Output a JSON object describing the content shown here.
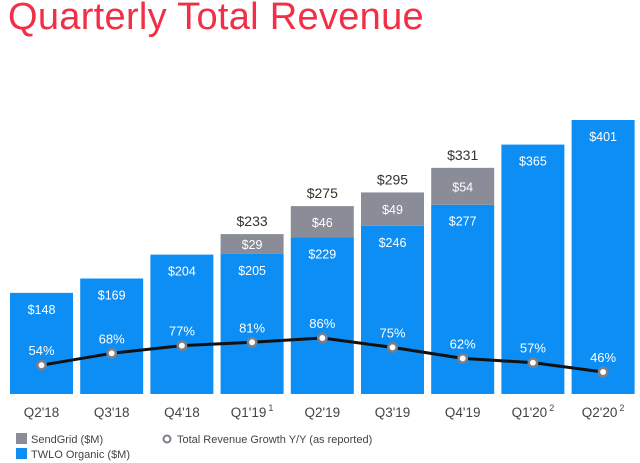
{
  "chart_data": {
    "type": "bar",
    "title": "Quarterly Total Revenue",
    "xlabel": "",
    "ylabel": "",
    "ylim": [
      0,
      401
    ],
    "categories": [
      "Q2'18",
      "Q3'18",
      "Q4'18",
      "Q1'19",
      "Q2'19",
      "Q3'19",
      "Q4'19",
      "Q1'20",
      "Q2'20"
    ],
    "category_superscripts": [
      "",
      "",
      "",
      "1",
      "",
      "",
      "",
      "2",
      "2"
    ],
    "stacked": true,
    "series": [
      {
        "name": "TWLO Organic ($M)",
        "color": "#0d8ef5",
        "values": [
          148,
          169,
          204,
          205,
          229,
          246,
          277,
          365,
          401
        ],
        "labels": [
          "$148",
          "$169",
          "$204",
          "$205",
          "$229",
          "$246",
          "$277",
          "$365",
          "$401"
        ]
      },
      {
        "name": "SendGrid ($M)",
        "color": "#8a8d97",
        "values": [
          null,
          null,
          null,
          29,
          46,
          49,
          54,
          null,
          null
        ],
        "labels": [
          "",
          "",
          "",
          "$29",
          "$46",
          "$49",
          "$54",
          "",
          ""
        ]
      }
    ],
    "totals": [
      "",
      "",
      "",
      "$233",
      "$275",
      "$295",
      "$331",
      "",
      ""
    ],
    "line_series": {
      "name": "Total Revenue Growth Y/Y (as reported)",
      "color": "#111111",
      "values": [
        54,
        68,
        77,
        81,
        86,
        75,
        62,
        57,
        46
      ],
      "labels": [
        "54%",
        "68%",
        "77%",
        "81%",
        "86%",
        "75%",
        "62%",
        "57%",
        "46%"
      ]
    },
    "legend_position": "bottom-left",
    "grid": false
  }
}
